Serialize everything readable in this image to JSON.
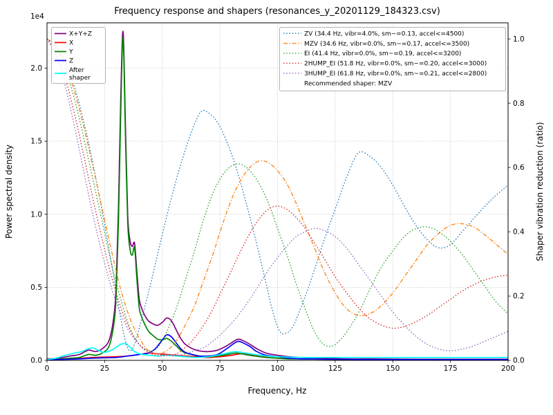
{
  "title": "Frequency response and shapers (resonances_y_20201129_184323.csv)",
  "axes": {
    "x": {
      "label": "Frequency, Hz",
      "ticks": [
        "0",
        "25",
        "50",
        "75",
        "100",
        "125",
        "150",
        "175",
        "200"
      ],
      "tick_values": [
        0,
        25,
        50,
        75,
        100,
        125,
        150,
        175,
        200
      ]
    },
    "y_left": {
      "label": "Power spectral density",
      "offset_text": "1e4",
      "ticks": [
        "0.0",
        "0.5",
        "1.0",
        "1.5",
        "2.0"
      ],
      "tick_values": [
        0,
        0.5,
        1.0,
        1.5,
        2.0
      ]
    },
    "y_right": {
      "label": "Shaper vibration reduction (ratio)",
      "ticks": [
        "0.0",
        "0.2",
        "0.4",
        "0.6",
        "0.8",
        "1.0"
      ],
      "tick_values": [
        0,
        0.2,
        0.4,
        0.6,
        0.8,
        1.0
      ]
    }
  },
  "legend_shapers": {
    "recommended": "Recommended shaper: MZV"
  },
  "colors": {
    "grid": "#b0b0b0",
    "spine": "#000000",
    "legend_border": "#b3b3b3"
  },
  "chart_data": {
    "type": "line",
    "title": "Frequency response and shapers (resonances_y_20201129_184323.csv)",
    "xlabel": "Frequency, Hz",
    "ylabel_left": "Power spectral density (1e4)",
    "ylabel_right": "Shaper vibration reduction (ratio)",
    "x_range": [
      0,
      200
    ],
    "y_left_range": [
      0,
      2.31
    ],
    "y_left_scale": "1e4",
    "y_right_range": [
      0,
      1.05
    ],
    "grid": true,
    "legend_positions": [
      "upper left",
      "upper right"
    ],
    "series": [
      {
        "name": "psd-sum",
        "legend_label": "X+Y+Z",
        "color": "#800080",
        "axis": "left",
        "style": "solid",
        "width": 1.7,
        "x": [
          0,
          5,
          10,
          14,
          18,
          21,
          24,
          27,
          29,
          30,
          31,
          32,
          33,
          34,
          35,
          36,
          37,
          38,
          39,
          40,
          41,
          42,
          44,
          46,
          48,
          50,
          52,
          54,
          56,
          58,
          60,
          63,
          66,
          70,
          74,
          78,
          81,
          83,
          85,
          88,
          91,
          95,
          100,
          105,
          110,
          120,
          130,
          140,
          160,
          180,
          200
        ],
        "y": [
          0.01,
          0.015,
          0.03,
          0.04,
          0.07,
          0.06,
          0.08,
          0.14,
          0.3,
          0.52,
          1.05,
          1.8,
          2.25,
          1.62,
          1.0,
          0.82,
          0.78,
          0.8,
          0.6,
          0.42,
          0.36,
          0.32,
          0.27,
          0.25,
          0.24,
          0.26,
          0.29,
          0.27,
          0.21,
          0.15,
          0.11,
          0.08,
          0.065,
          0.06,
          0.07,
          0.1,
          0.13,
          0.145,
          0.135,
          0.11,
          0.08,
          0.05,
          0.035,
          0.025,
          0.02,
          0.015,
          0.01,
          0.01,
          0.008,
          0.008,
          0.008
        ]
      },
      {
        "name": "psd-x",
        "legend_label": "X",
        "color": "#ff0000",
        "axis": "left",
        "style": "solid",
        "width": 1.7,
        "x": [
          0,
          10,
          20,
          30,
          35,
          40,
          44,
          48,
          52,
          56,
          60,
          65,
          70,
          75,
          80,
          84,
          88,
          92,
          96,
          100,
          110,
          120,
          140,
          160,
          180,
          200
        ],
        "y": [
          0.005,
          0.01,
          0.02,
          0.025,
          0.03,
          0.04,
          0.05,
          0.045,
          0.04,
          0.035,
          0.03,
          0.025,
          0.02,
          0.025,
          0.035,
          0.045,
          0.04,
          0.03,
          0.02,
          0.015,
          0.01,
          0.008,
          0.006,
          0.005,
          0.005,
          0.005
        ]
      },
      {
        "name": "psd-y",
        "legend_label": "Y",
        "color": "#008000",
        "axis": "left",
        "style": "solid",
        "width": 1.7,
        "x": [
          0,
          5,
          10,
          14,
          18,
          21,
          24,
          27,
          29,
          30,
          31,
          32,
          33,
          34,
          35,
          36,
          37,
          38,
          39,
          40,
          41,
          42,
          44,
          46,
          48,
          50,
          52,
          54,
          56,
          58,
          60,
          63,
          66,
          70,
          74,
          78,
          82,
          86,
          90,
          95,
          100,
          105,
          110,
          120,
          130,
          140,
          160,
          180,
          200
        ],
        "y": [
          0.005,
          0.008,
          0.015,
          0.02,
          0.04,
          0.035,
          0.05,
          0.1,
          0.25,
          0.45,
          0.95,
          1.7,
          2.21,
          1.55,
          0.95,
          0.76,
          0.72,
          0.77,
          0.55,
          0.36,
          0.3,
          0.26,
          0.2,
          0.17,
          0.145,
          0.14,
          0.15,
          0.13,
          0.1,
          0.07,
          0.05,
          0.04,
          0.03,
          0.025,
          0.03,
          0.04,
          0.05,
          0.04,
          0.03,
          0.02,
          0.015,
          0.01,
          0.01,
          0.008,
          0.006,
          0.005,
          0.005,
          0.005,
          0.005
        ]
      },
      {
        "name": "psd-z",
        "legend_label": "Z",
        "color": "#0000ff",
        "axis": "left",
        "style": "solid",
        "width": 1.7,
        "x": [
          0,
          10,
          20,
          30,
          35,
          40,
          44,
          47,
          50,
          52,
          54,
          56,
          58,
          60,
          63,
          66,
          70,
          74,
          78,
          81,
          83,
          85,
          88,
          91,
          95,
          100,
          105,
          110,
          120,
          140,
          160,
          180,
          200
        ],
        "y": [
          0.005,
          0.008,
          0.015,
          0.02,
          0.03,
          0.04,
          0.05,
          0.08,
          0.14,
          0.175,
          0.16,
          0.12,
          0.08,
          0.055,
          0.04,
          0.03,
          0.03,
          0.04,
          0.08,
          0.115,
          0.13,
          0.12,
          0.095,
          0.06,
          0.035,
          0.025,
          0.015,
          0.01,
          0.008,
          0.006,
          0.005,
          0.005,
          0.005
        ]
      },
      {
        "name": "psd-after-shaper",
        "legend_label": "After\nshaper",
        "color": "#00ffff",
        "axis": "left",
        "style": "solid",
        "width": 1.7,
        "x": [
          0,
          4,
          8,
          12,
          15,
          18,
          20,
          22,
          25,
          28,
          30,
          32,
          34,
          36,
          38,
          40,
          44,
          48,
          52,
          56,
          60,
          65,
          70,
          74,
          78,
          82,
          86,
          90,
          95,
          100,
          110,
          120,
          140,
          160,
          180,
          200
        ],
        "y": [
          0.005,
          0.015,
          0.035,
          0.05,
          0.06,
          0.08,
          0.085,
          0.07,
          0.055,
          0.07,
          0.09,
          0.11,
          0.115,
          0.09,
          0.06,
          0.045,
          0.035,
          0.03,
          0.035,
          0.03,
          0.025,
          0.02,
          0.025,
          0.035,
          0.05,
          0.06,
          0.05,
          0.04,
          0.03,
          0.025,
          0.02,
          0.02,
          0.02,
          0.02,
          0.02,
          0.02
        ]
      },
      {
        "name": "shaper-zv",
        "legend_label": "ZV (34.4 Hz, vibr=4.0%, sm~=0.13, accel<=4500)",
        "color": "#1f77b4",
        "axis": "right",
        "style": "dotted",
        "width": 1.3,
        "x": [
          0,
          4,
          8,
          12,
          16,
          20,
          24,
          28,
          31,
          34,
          36,
          38,
          40,
          44,
          48,
          52,
          56,
          60,
          64,
          67,
          70,
          74,
          78,
          82,
          86,
          90,
          94,
          98,
          101,
          104,
          107,
          111,
          115,
          120,
          125,
          130,
          135,
          140,
          145,
          150,
          155,
          160,
          165,
          170,
          175,
          180,
          185,
          190,
          195,
          200
        ],
        "y": [
          1.0,
          0.98,
          0.93,
          0.85,
          0.74,
          0.61,
          0.46,
          0.3,
          0.17,
          0.06,
          0.03,
          0.05,
          0.1,
          0.21,
          0.33,
          0.45,
          0.56,
          0.655,
          0.735,
          0.775,
          0.77,
          0.74,
          0.68,
          0.6,
          0.5,
          0.39,
          0.27,
          0.15,
          0.09,
          0.085,
          0.11,
          0.18,
          0.26,
          0.37,
          0.47,
          0.57,
          0.645,
          0.635,
          0.6,
          0.545,
          0.48,
          0.42,
          0.375,
          0.35,
          0.36,
          0.4,
          0.44,
          0.48,
          0.515,
          0.545
        ]
      },
      {
        "name": "shaper-mzv",
        "legend_label": "MZV (34.6 Hz, vibr=0.0%, sm~=0.17, accel<=3500)",
        "color": "#ff7f0e",
        "axis": "right",
        "style": "dashdot",
        "width": 1.3,
        "x": [
          0,
          4,
          8,
          12,
          16,
          20,
          24,
          28,
          32,
          36,
          40,
          44,
          48,
          52,
          56,
          60,
          64,
          68,
          72,
          76,
          80,
          84,
          88,
          92,
          96,
          100,
          104,
          108,
          112,
          116,
          120,
          125,
          130,
          135,
          140,
          145,
          150,
          155,
          160,
          165,
          170,
          175,
          180,
          185,
          190,
          195,
          200
        ],
        "y": [
          1.0,
          0.975,
          0.92,
          0.835,
          0.725,
          0.6,
          0.47,
          0.34,
          0.22,
          0.13,
          0.07,
          0.03,
          0.02,
          0.03,
          0.06,
          0.11,
          0.17,
          0.25,
          0.33,
          0.42,
          0.5,
          0.56,
          0.6,
          0.62,
          0.615,
          0.59,
          0.55,
          0.49,
          0.42,
          0.35,
          0.28,
          0.21,
          0.16,
          0.14,
          0.145,
          0.17,
          0.21,
          0.26,
          0.31,
          0.36,
          0.395,
          0.42,
          0.425,
          0.415,
          0.39,
          0.36,
          0.33
        ]
      },
      {
        "name": "shaper-ei",
        "legend_label": "EI (41.4 Hz, vibr=0.0%, sm~=0.19, accel<=3200)",
        "color": "#2ca02c",
        "axis": "right",
        "style": "dotted",
        "width": 1.3,
        "x": [
          0,
          4,
          8,
          12,
          16,
          20,
          24,
          28,
          32,
          36,
          40,
          44,
          48,
          52,
          56,
          60,
          64,
          68,
          72,
          76,
          80,
          84,
          88,
          92,
          96,
          100,
          104,
          108,
          112,
          116,
          120,
          124,
          128,
          132,
          136,
          140,
          145,
          150,
          155,
          160,
          165,
          170,
          175,
          180,
          185,
          190,
          195,
          200
        ],
        "y": [
          1.0,
          0.97,
          0.905,
          0.81,
          0.69,
          0.56,
          0.43,
          0.3,
          0.19,
          0.1,
          0.05,
          0.03,
          0.04,
          0.09,
          0.16,
          0.25,
          0.34,
          0.44,
          0.52,
          0.575,
          0.605,
          0.61,
          0.59,
          0.55,
          0.49,
          0.41,
          0.33,
          0.24,
          0.16,
          0.09,
          0.05,
          0.045,
          0.07,
          0.11,
          0.16,
          0.22,
          0.29,
          0.34,
          0.385,
          0.41,
          0.415,
          0.4,
          0.37,
          0.33,
          0.28,
          0.23,
          0.18,
          0.145
        ]
      },
      {
        "name": "shaper-2hump-ei",
        "legend_label": "2HUMP_EI (51.8 Hz, vibr=0.0%, sm~=0.20, accel<=3000)",
        "color": "#d62728",
        "axis": "right",
        "style": "dotted",
        "width": 1.3,
        "x": [
          0,
          4,
          8,
          12,
          16,
          20,
          24,
          28,
          32,
          36,
          40,
          44,
          48,
          52,
          56,
          60,
          64,
          68,
          72,
          76,
          80,
          84,
          88,
          92,
          96,
          100,
          104,
          108,
          112,
          116,
          120,
          125,
          130,
          135,
          140,
          145,
          150,
          155,
          160,
          165,
          170,
          175,
          180,
          185,
          190,
          195,
          200
        ],
        "y": [
          1.0,
          0.955,
          0.875,
          0.765,
          0.635,
          0.5,
          0.375,
          0.26,
          0.165,
          0.095,
          0.05,
          0.025,
          0.015,
          0.015,
          0.02,
          0.04,
          0.07,
          0.11,
          0.16,
          0.22,
          0.28,
          0.34,
          0.395,
          0.44,
          0.47,
          0.48,
          0.47,
          0.445,
          0.41,
          0.365,
          0.32,
          0.26,
          0.21,
          0.165,
          0.13,
          0.11,
          0.1,
          0.105,
          0.12,
          0.14,
          0.165,
          0.19,
          0.215,
          0.235,
          0.25,
          0.26,
          0.265
        ]
      },
      {
        "name": "shaper-3hump-ei",
        "legend_label": "3HUMP_EI (61.8 Hz, vibr=0.0%, sm~=0.21, accel<=2800)",
        "color": "#9467bd",
        "axis": "right",
        "style": "dotted",
        "width": 1.3,
        "x": [
          0,
          4,
          8,
          12,
          16,
          20,
          24,
          28,
          32,
          36,
          40,
          44,
          48,
          52,
          56,
          60,
          64,
          68,
          72,
          76,
          80,
          84,
          88,
          92,
          96,
          100,
          104,
          108,
          112,
          116,
          120,
          124,
          128,
          132,
          136,
          140,
          145,
          150,
          155,
          160,
          165,
          170,
          175,
          180,
          185,
          190,
          195,
          200
        ],
        "y": [
          1.0,
          0.945,
          0.85,
          0.725,
          0.585,
          0.45,
          0.33,
          0.225,
          0.145,
          0.085,
          0.05,
          0.03,
          0.02,
          0.015,
          0.015,
          0.02,
          0.03,
          0.04,
          0.06,
          0.085,
          0.115,
          0.15,
          0.19,
          0.235,
          0.28,
          0.32,
          0.355,
          0.385,
          0.4,
          0.41,
          0.405,
          0.39,
          0.365,
          0.33,
          0.29,
          0.25,
          0.2,
          0.15,
          0.11,
          0.075,
          0.05,
          0.035,
          0.03,
          0.035,
          0.045,
          0.06,
          0.075,
          0.09
        ]
      }
    ]
  }
}
